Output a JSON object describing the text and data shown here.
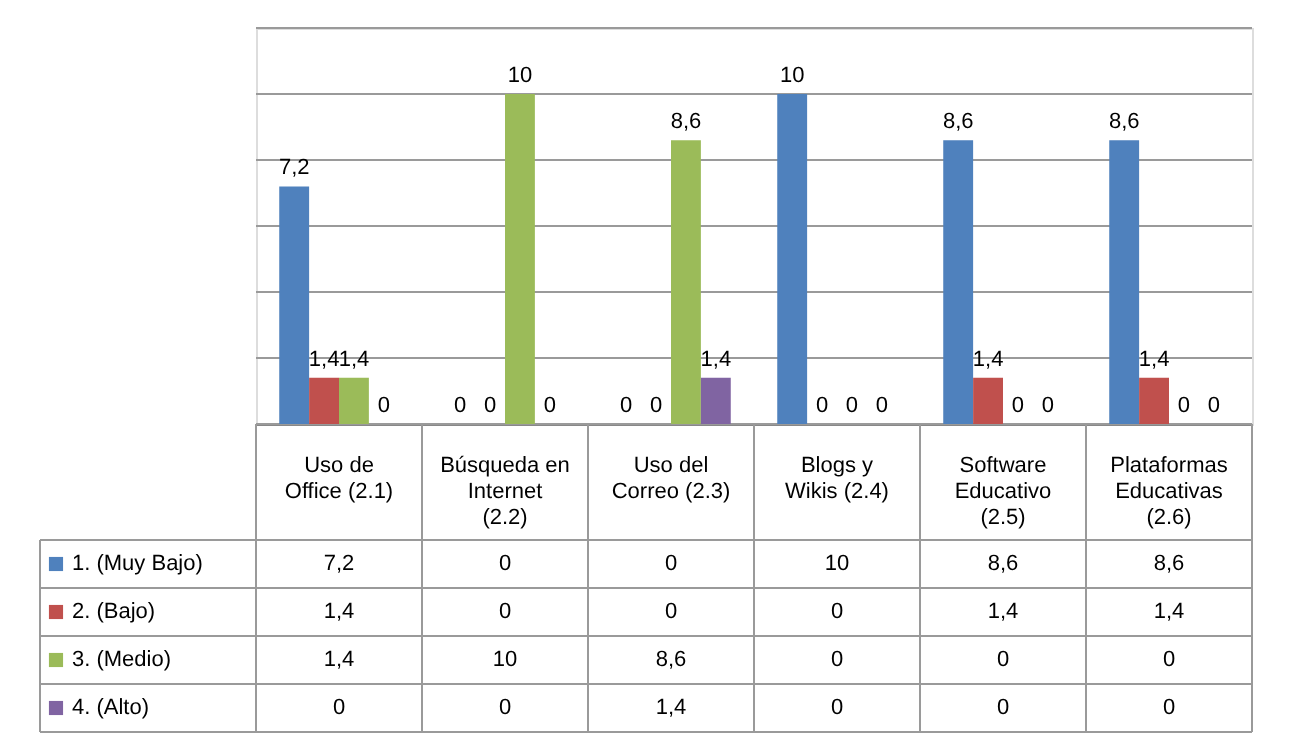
{
  "chart_data": {
    "type": "bar",
    "categories": [
      "Uso de Office (2.1)",
      "Búsqueda en Internet (2.2)",
      "Uso del Correo (2.3)",
      "Blogs y Wikis (2.4)",
      "Software Educativo (2.5)",
      "Plataformas Educativas (2.6)"
    ],
    "series": [
      {
        "name": "1. (Muy Bajo)",
        "color": "#4f81bd",
        "values": [
          7.2,
          0,
          0,
          10,
          8.6,
          8.6
        ],
        "value_labels": [
          "7,2",
          "0",
          "0",
          "10",
          "8,6",
          "8,6"
        ]
      },
      {
        "name": "2. (Bajo)",
        "color": "#c0504d",
        "values": [
          1.4,
          0,
          0,
          0,
          1.4,
          1.4
        ],
        "value_labels": [
          "1,4",
          "0",
          "0",
          "0",
          "1,4",
          "1,4"
        ]
      },
      {
        "name": "3. (Medio)",
        "color": "#9bbb59",
        "values": [
          1.4,
          10,
          8.6,
          0,
          0,
          0
        ],
        "value_labels": [
          "1,4",
          "10",
          "8,6",
          "0",
          "0",
          "0"
        ]
      },
      {
        "name": "4. (Alto)",
        "color": "#8064a2",
        "values": [
          0,
          0,
          1.4,
          0,
          0,
          0
        ],
        "value_labels": [
          "0",
          "0",
          "1,4",
          "0",
          "0",
          "0"
        ]
      }
    ],
    "ylim": [
      0,
      12
    ],
    "yticks": [
      {
        "value": 0,
        "label": null
      },
      {
        "value": 2,
        "label": null
      },
      {
        "value": 4,
        "label": null
      },
      {
        "value": 6,
        "label": null
      },
      {
        "value": 8,
        "label": null
      },
      {
        "value": 10,
        "label": null
      },
      {
        "value": 12,
        "label": null
      }
    ],
    "tick_labels": "x",
    "grid": "y",
    "legend": "bottom"
  }
}
